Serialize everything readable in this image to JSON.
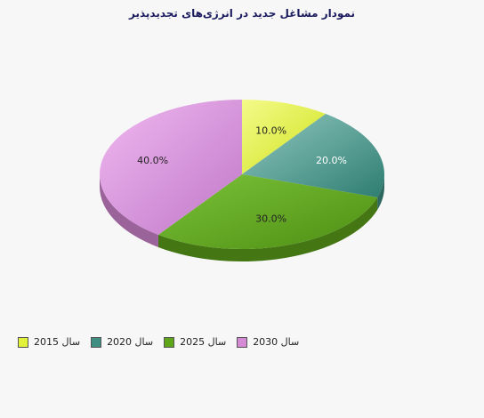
{
  "chart_data": {
    "type": "pie",
    "title": "نمودار مشاغل جدید در انرژی‌های  تجدیدپذیر",
    "categories": [
      "سال 2015",
      "سال 2020",
      "سال 2025",
      "سال 2030"
    ],
    "values": [
      10.0,
      20.0,
      30.0,
      40.0
    ],
    "data_labels": [
      "10.0%",
      "20.0%",
      "30.0%",
      "40.0%"
    ],
    "colors": [
      "#e2f23a",
      "#3e8f82",
      "#5fa51a",
      "#d68ad6"
    ],
    "legend_position": "bottom-left",
    "style": "3d"
  }
}
